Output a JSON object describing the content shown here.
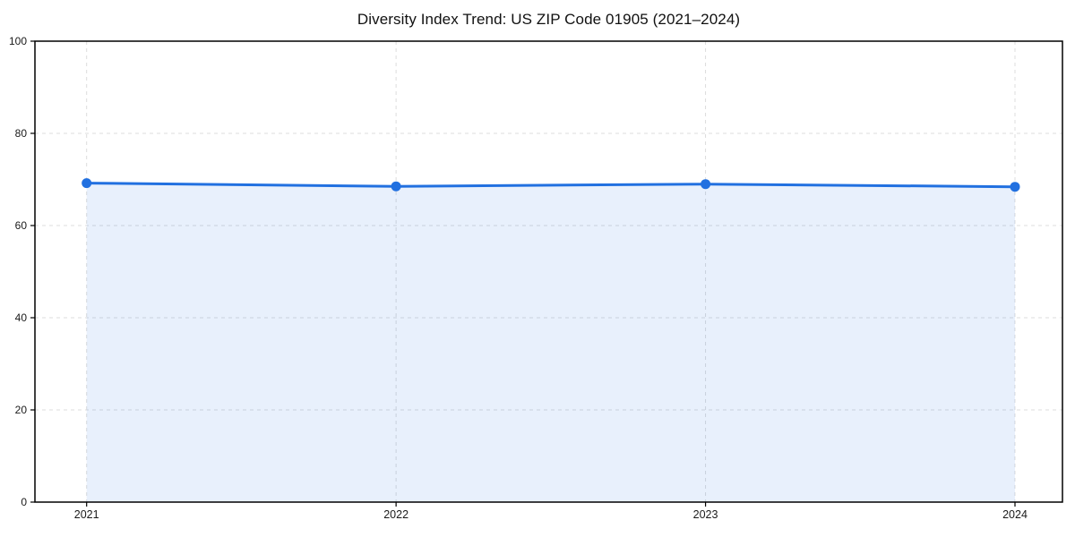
{
  "chart_data": {
    "type": "area",
    "title": "Diversity Index Trend: US ZIP Code 01905 (2021–2024)",
    "x": [
      2021,
      2022,
      2023,
      2024
    ],
    "series": [
      {
        "name": "Diversity Index",
        "values": [
          69.2,
          68.5,
          69.0,
          68.4
        ]
      }
    ],
    "xlabel": "",
    "ylabel": "",
    "xticklabels": [
      "2021",
      "2022",
      "2023",
      "2024"
    ],
    "yticks": [
      0,
      20,
      40,
      60,
      80,
      100
    ],
    "yticklabels": [
      "0",
      "20",
      "40",
      "60",
      "80",
      "100"
    ],
    "ylim": [
      0,
      100
    ],
    "grid": "dashed-both-axes",
    "legend": "none",
    "colors": {
      "line": "#2170e0",
      "marker": "#2170e0",
      "area_fill": "rgba(33,112,224,0.10)",
      "gridline": "#dcdcdc",
      "spine": "#000000",
      "tick_label": "#1a1a1a",
      "background": "#ffffff"
    }
  }
}
